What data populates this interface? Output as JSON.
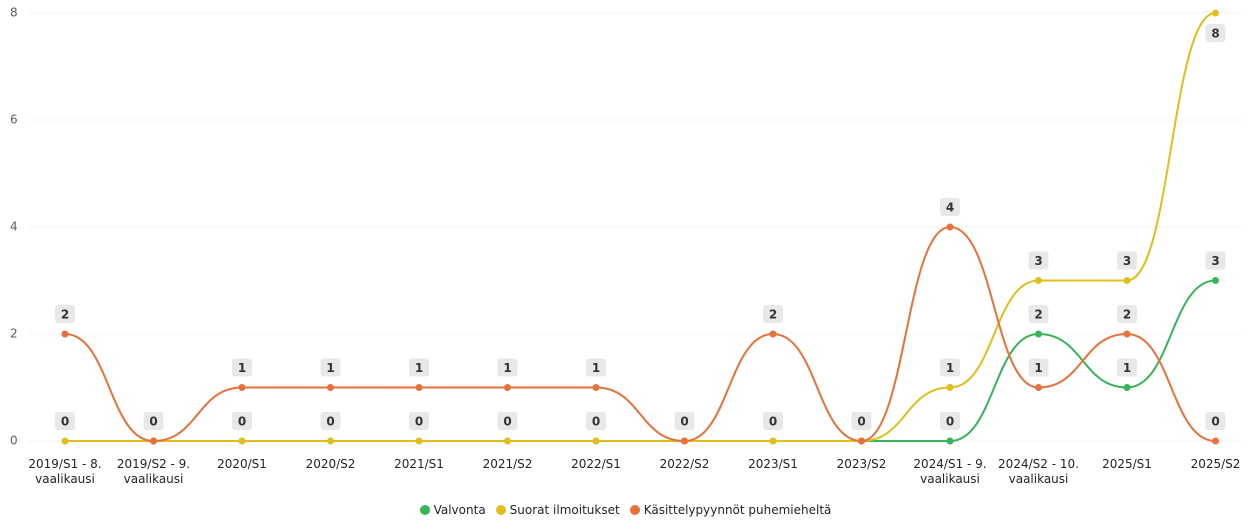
{
  "chart_data": {
    "type": "line",
    "categories": [
      "2019/S1 - 8. vaalikausi",
      "2019/S2 - 9. vaalikausi",
      "2020/S1",
      "2020/S2",
      "2021/S1",
      "2021/S2",
      "2022/S1",
      "2022/S2",
      "2023/S1",
      "2023/S2",
      "2024/S1 - 9. vaalikausi",
      "2024/S2 - 10. vaalikausi",
      "2025/S1",
      "2025/S2"
    ],
    "series": [
      {
        "name": "Valvonta",
        "color": "#37b45a",
        "values": [
          null,
          null,
          null,
          null,
          null,
          null,
          null,
          null,
          null,
          0,
          0,
          2,
          1,
          3
        ]
      },
      {
        "name": "Suorat ilmoitukset",
        "color": "#e0bf1c",
        "values": [
          0,
          0,
          0,
          0,
          0,
          0,
          0,
          0,
          0,
          0,
          1,
          3,
          3,
          8
        ]
      },
      {
        "name": "Käsittelypyynnöt puhemieheltä",
        "color": "#e8703a",
        "values": [
          2,
          0,
          1,
          1,
          1,
          1,
          1,
          0,
          2,
          0,
          4,
          1,
          2,
          0
        ]
      }
    ],
    "ylim": [
      0,
      8
    ],
    "yticks": [
      0,
      2,
      4,
      6,
      8
    ],
    "grid": true
  }
}
